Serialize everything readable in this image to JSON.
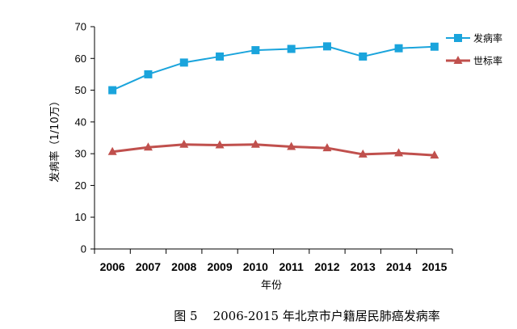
{
  "chart_data": {
    "type": "line",
    "title": "",
    "caption": "图 5    2006-2015 年北京市户籍居民肺癌发病率",
    "xlabel": "年份",
    "ylabel": "发病率（1/10万）",
    "x": [
      "2006",
      "2007",
      "2008",
      "2009",
      "2010",
      "2011",
      "2012",
      "2013",
      "2014",
      "2015"
    ],
    "ylim": [
      0,
      70
    ],
    "yticks": [
      0,
      10,
      20,
      30,
      40,
      50,
      60,
      70
    ],
    "grid": false,
    "legend_position": "top-right",
    "series": [
      {
        "name": "发病率",
        "color": "#1aa4dc",
        "marker": "square",
        "values": [
          50.0,
          55.0,
          58.7,
          60.6,
          62.6,
          63.0,
          63.8,
          60.6,
          63.2,
          63.7
        ]
      },
      {
        "name": "世标率",
        "color": "#c0504d",
        "marker": "triangle",
        "values": [
          30.6,
          32.0,
          32.9,
          32.7,
          32.9,
          32.2,
          31.8,
          29.8,
          30.2,
          29.5
        ]
      }
    ]
  }
}
